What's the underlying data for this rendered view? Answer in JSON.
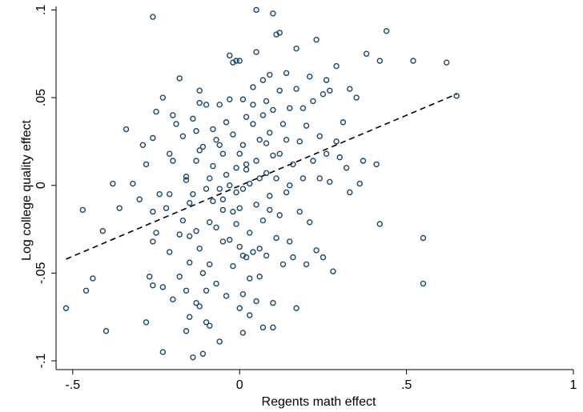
{
  "chart_data": {
    "type": "scatter",
    "title": "",
    "xlabel": "Regents math effect",
    "ylabel": "Log college quality effect",
    "xlim": [
      -0.55,
      1.0
    ],
    "ylim": [
      -0.105,
      0.102
    ],
    "x_ticks": [
      {
        "value": -0.5,
        "label": "-.5"
      },
      {
        "value": 0,
        "label": "0"
      },
      {
        "value": 0.5,
        "label": ".5"
      },
      {
        "value": 1,
        "label": "1"
      }
    ],
    "y_ticks": [
      {
        "value": -0.1,
        "label": "-.1"
      },
      {
        "value": -0.05,
        "label": "-.05"
      },
      {
        "value": 0,
        "label": "0"
      },
      {
        "value": 0.05,
        "label": ".05"
      },
      {
        "value": 0.1,
        "label": ".1"
      }
    ],
    "grid": false,
    "legend": "none",
    "colors": {
      "marker": "#1a476f",
      "fit_line": "#000000",
      "axis": "#000000"
    },
    "fit_line": {
      "style": "dashed",
      "x": [
        -0.52,
        0.65
      ],
      "y": [
        -0.042,
        0.052
      ]
    },
    "points": [
      [
        -0.52,
        -0.07
      ],
      [
        -0.47,
        -0.014
      ],
      [
        -0.46,
        -0.06
      ],
      [
        -0.44,
        -0.053
      ],
      [
        -0.41,
        -0.026
      ],
      [
        -0.4,
        -0.083
      ],
      [
        -0.38,
        0.001
      ],
      [
        -0.36,
        -0.013
      ],
      [
        -0.34,
        0.032
      ],
      [
        -0.32,
        0.001
      ],
      [
        -0.3,
        -0.008
      ],
      [
        -0.29,
        0.023
      ],
      [
        -0.28,
        0.012
      ],
      [
        -0.28,
        -0.078
      ],
      [
        -0.26,
        -0.032
      ],
      [
        -0.26,
        0.096
      ],
      [
        -0.26,
        -0.015
      ],
      [
        -0.26,
        0.027
      ],
      [
        -0.27,
        -0.052
      ],
      [
        -0.26,
        -0.057
      ],
      [
        -0.25,
        -0.027
      ],
      [
        -0.25,
        0.042
      ],
      [
        -0.24,
        -0.005
      ],
      [
        -0.23,
        -0.058
      ],
      [
        -0.23,
        0.05
      ],
      [
        -0.23,
        -0.095
      ],
      [
        -0.22,
        -0.013
      ],
      [
        -0.21,
        -0.038
      ],
      [
        -0.21,
        0.018
      ],
      [
        -0.21,
        -0.005
      ],
      [
        -0.2,
        0.04
      ],
      [
        -0.2,
        0.014
      ],
      [
        -0.2,
        -0.065
      ],
      [
        -0.19,
        0.035
      ],
      [
        -0.18,
        -0.052
      ],
      [
        -0.18,
        -0.028
      ],
      [
        -0.18,
        0.061
      ],
      [
        -0.17,
        -0.02
      ],
      [
        -0.17,
        0.028
      ],
      [
        -0.16,
        -0.06
      ],
      [
        -0.16,
        0.005
      ],
      [
        -0.16,
        -0.083
      ],
      [
        -0.16,
        0.003
      ],
      [
        -0.15,
        -0.029
      ],
      [
        -0.15,
        -0.044
      ],
      [
        -0.15,
        -0.075
      ],
      [
        -0.15,
        -0.01
      ],
      [
        -0.14,
        0.038
      ],
      [
        -0.14,
        -0.098
      ],
      [
        -0.14,
        -0.005
      ],
      [
        -0.13,
        -0.026
      ],
      [
        -0.13,
        0.014
      ],
      [
        -0.13,
        0.031
      ],
      [
        -0.13,
        -0.067
      ],
      [
        -0.12,
        -0.069
      ],
      [
        -0.12,
        0.047
      ],
      [
        -0.12,
        0.054
      ],
      [
        -0.12,
        -0.036
      ],
      [
        -0.12,
        0.02
      ],
      [
        -0.11,
        -0.096
      ],
      [
        -0.11,
        -0.05
      ],
      [
        -0.11,
        0.022
      ],
      [
        -0.1,
        -0.002
      ],
      [
        -0.1,
        -0.06
      ],
      [
        -0.1,
        -0.078
      ],
      [
        -0.1,
        0.046
      ],
      [
        -0.09,
        -0.045
      ],
      [
        -0.09,
        -0.021
      ],
      [
        -0.09,
        0.004
      ],
      [
        -0.09,
        -0.08
      ],
      [
        -0.08,
        0.032
      ],
      [
        -0.08,
        -0.009
      ],
      [
        -0.08,
        0.011
      ],
      [
        -0.07,
        -0.024
      ],
      [
        -0.07,
        -0.056
      ],
      [
        -0.07,
        0.026
      ],
      [
        -0.06,
        -0.089
      ],
      [
        -0.06,
        0.046
      ],
      [
        -0.06,
        -0.002
      ],
      [
        -0.06,
        0.023
      ],
      [
        -0.05,
        -0.032
      ],
      [
        -0.05,
        -0.014
      ],
      [
        -0.05,
        -0.008
      ],
      [
        -0.05,
        0.018
      ],
      [
        -0.04,
        -0.063
      ],
      [
        -0.04,
        0.036
      ],
      [
        -0.04,
        0.006
      ],
      [
        -0.03,
        -0.031
      ],
      [
        -0.03,
        0.049
      ],
      [
        -0.03,
        0.074
      ],
      [
        -0.03,
        0.0
      ],
      [
        -0.02,
        0.07
      ],
      [
        -0.02,
        -0.015
      ],
      [
        -0.02,
        -0.046
      ],
      [
        -0.02,
        0.029
      ],
      [
        -0.01,
        -0.004
      ],
      [
        -0.01,
        0.071
      ],
      [
        -0.01,
        -0.022
      ],
      [
        -0.01,
        0.01
      ],
      [
        -0.0,
        -0.07
      ],
      [
        -0.0,
        -0.035
      ],
      [
        0.0,
        0.071
      ],
      [
        0.0,
        -0.013
      ],
      [
        0.0,
        0.018
      ],
      [
        0.01,
        0.049
      ],
      [
        0.01,
        -0.04
      ],
      [
        0.01,
        -0.062
      ],
      [
        0.01,
        -0.002
      ],
      [
        0.01,
        0.023
      ],
      [
        0.01,
        -0.084
      ],
      [
        0.02,
        -0.041
      ],
      [
        0.02,
        0.012
      ],
      [
        0.02,
        0.039
      ],
      [
        0.02,
        0.009
      ],
      [
        0.03,
        -0.053
      ],
      [
        0.03,
        -0.074
      ],
      [
        0.03,
        -0.027
      ],
      [
        0.03,
        0.001
      ],
      [
        0.04,
        0.056
      ],
      [
        0.04,
        -0.038
      ],
      [
        0.04,
        0.046
      ],
      [
        0.04,
        0.035
      ],
      [
        0.05,
        -0.066
      ],
      [
        0.05,
        -0.011
      ],
      [
        0.05,
        0.014
      ],
      [
        0.05,
        0.076
      ],
      [
        0.05,
        0.1
      ],
      [
        0.06,
        -0.036
      ],
      [
        0.06,
        0.026
      ],
      [
        0.06,
        0.004
      ],
      [
        0.06,
        -0.052
      ],
      [
        0.07,
        0.04
      ],
      [
        0.07,
        -0.02
      ],
      [
        0.07,
        0.06
      ],
      [
        0.07,
        -0.081
      ],
      [
        0.08,
        -0.04
      ],
      [
        0.08,
        0.024
      ],
      [
        0.08,
        0.007
      ],
      [
        0.08,
        0.048
      ],
      [
        0.09,
        -0.006
      ],
      [
        0.09,
        0.063
      ],
      [
        0.09,
        0.03
      ],
      [
        0.09,
        -0.014
      ],
      [
        0.1,
        0.098
      ],
      [
        0.1,
        -0.067
      ],
      [
        0.1,
        0.017
      ],
      [
        0.1,
        0.043
      ],
      [
        0.1,
        -0.081
      ],
      [
        0.11,
        0.086
      ],
      [
        0.11,
        0.004
      ],
      [
        0.11,
        -0.03
      ],
      [
        0.12,
        0.087
      ],
      [
        0.12,
        0.054
      ],
      [
        0.12,
        0.018
      ],
      [
        0.12,
        -0.017
      ],
      [
        0.13,
        0.035
      ],
      [
        0.13,
        -0.045
      ],
      [
        0.14,
        -0.004
      ],
      [
        0.14,
        0.026
      ],
      [
        0.14,
        0.064
      ],
      [
        0.15,
        -0.032
      ],
      [
        0.15,
        0.044
      ],
      [
        0.15,
        0.0
      ],
      [
        0.16,
        0.012
      ],
      [
        0.16,
        -0.041
      ],
      [
        0.17,
        0.078
      ],
      [
        0.17,
        0.055
      ],
      [
        0.17,
        -0.07
      ],
      [
        0.18,
        0.025
      ],
      [
        0.18,
        -0.015
      ],
      [
        0.19,
        0.044
      ],
      [
        0.19,
        0.004
      ],
      [
        0.2,
        0.034
      ],
      [
        0.2,
        -0.045
      ],
      [
        0.21,
        0.062
      ],
      [
        0.21,
        -0.021
      ],
      [
        0.22,
        0.014
      ],
      [
        0.22,
        0.048
      ],
      [
        0.23,
        -0.037
      ],
      [
        0.23,
        0.083
      ],
      [
        0.24,
        0.028
      ],
      [
        0.24,
        0.004
      ],
      [
        0.25,
        0.052
      ],
      [
        0.25,
        -0.041
      ],
      [
        0.26,
        0.06
      ],
      [
        0.26,
        0.018
      ],
      [
        0.27,
        0.054
      ],
      [
        0.27,
        0.002
      ],
      [
        0.28,
        -0.049
      ],
      [
        0.29,
        0.068
      ],
      [
        0.29,
        0.025
      ],
      [
        0.3,
        0.016
      ],
      [
        0.31,
        0.036
      ],
      [
        0.32,
        0.01
      ],
      [
        0.33,
        -0.004
      ],
      [
        0.33,
        0.055
      ],
      [
        0.35,
        0.05
      ],
      [
        0.36,
        0.001
      ],
      [
        0.37,
        0.014
      ],
      [
        0.38,
        0.075
      ],
      [
        0.41,
        0.012
      ],
      [
        0.42,
        -0.022
      ],
      [
        0.42,
        0.071
      ],
      [
        0.44,
        0.088
      ],
      [
        0.52,
        0.071
      ],
      [
        0.55,
        -0.03
      ],
      [
        0.55,
        -0.056
      ],
      [
        0.62,
        0.07
      ],
      [
        0.65,
        0.051
      ]
    ]
  }
}
